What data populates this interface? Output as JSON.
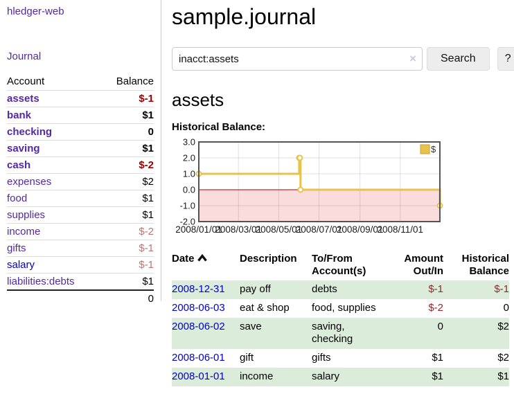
{
  "sidebar": {
    "brand": "hledger-web",
    "journal_link": "Journal",
    "accounts_table": {
      "account_header": "Account",
      "balance_header": "Balance",
      "rows": [
        {
          "name": "assets",
          "indent": 1,
          "bold": true,
          "link_color": "purple",
          "balance": "$-1",
          "balance_style": "neg-bold"
        },
        {
          "name": "bank",
          "indent": 2,
          "bold": true,
          "link_color": "purple",
          "balance": "$1",
          "balance_style": "pos-bold"
        },
        {
          "name": "checking",
          "indent": 3,
          "bold": true,
          "link_color": "purple",
          "balance": "0",
          "balance_style": "pos-bold"
        },
        {
          "name": "saving",
          "indent": 3,
          "bold": true,
          "link_color": "purple",
          "balance": "$1",
          "balance_style": "pos-bold"
        },
        {
          "name": "cash",
          "indent": 2,
          "bold": true,
          "link_color": "purple",
          "balance": "$-2",
          "balance_style": "neg-bold"
        },
        {
          "name": "expenses",
          "indent": 1,
          "bold": false,
          "link_color": "purple",
          "balance": "$2",
          "balance_style": "pos"
        },
        {
          "name": "food",
          "indent": 2,
          "bold": false,
          "link_color": "purple",
          "balance": "$1",
          "balance_style": "pos"
        },
        {
          "name": "supplies",
          "indent": 2,
          "bold": false,
          "link_color": "purple",
          "balance": "$1",
          "balance_style": "pos"
        },
        {
          "name": "income",
          "indent": 1,
          "bold": false,
          "link_color": "purple",
          "balance": "$-2",
          "balance_style": "neg-light"
        },
        {
          "name": "gifts",
          "indent": 2,
          "bold": false,
          "link_color": "purple",
          "balance": "$-1",
          "balance_style": "neg-light"
        },
        {
          "name": "salary",
          "indent": 2,
          "bold": false,
          "link_color": "blue",
          "balance": "$-1",
          "balance_style": "neg-light"
        },
        {
          "name": "liabilities:debts",
          "indent": 1,
          "bold": false,
          "link_color": "purple",
          "balance": "$1",
          "balance_style": "pos"
        }
      ],
      "total": "0"
    }
  },
  "header": {
    "title": "sample.journal"
  },
  "search": {
    "value": "inacct:assets",
    "clear_icon": "×",
    "button_label": "Search",
    "help_label": "?"
  },
  "account_page": {
    "heading": "assets",
    "chart_label": "Historical Balance:"
  },
  "chart_data": {
    "type": "line",
    "style": "step-after",
    "title": "Historical Balance",
    "x_range": [
      "2008-01-01",
      "2008-12-31"
    ],
    "ylim": [
      -2,
      3
    ],
    "y_tick_labels": [
      "3.0",
      "2.0",
      "1.0",
      "0.0",
      "-1.0",
      "-2.0"
    ],
    "x_tick_labels": [
      "2008/01/01",
      "2008/03/01",
      "2008/05/01",
      "2008/07/01",
      "2008/09/01",
      "2008/11/01"
    ],
    "grid": true,
    "negative_region_color": "#fbdcdc",
    "zero_line_color": "#a00000",
    "line_color": "#e8c24a",
    "legend": {
      "label": "$",
      "position": "top-right"
    },
    "series": [
      {
        "name": "$",
        "points": [
          {
            "date": "2008-01-01",
            "value": 1
          },
          {
            "date": "2008-06-01",
            "value": 2
          },
          {
            "date": "2008-06-02",
            "value": 2
          },
          {
            "date": "2008-06-03",
            "value": 0
          },
          {
            "date": "2008-12-31",
            "value": -1
          }
        ]
      }
    ]
  },
  "transactions": {
    "headers": {
      "date": "Date",
      "description_1": "Description",
      "accounts_1": "To/From",
      "accounts_2": "Account(s)",
      "amount_1": "Amount",
      "amount_2": "Out/In",
      "balance_1": "Historical",
      "balance_2": "Balance"
    },
    "rows": [
      {
        "date": "2008-12-31",
        "description": "pay off",
        "accounts": "debts",
        "amount": "$-1",
        "amount_neg": true,
        "balance": "$-1",
        "balance_neg": true,
        "stripe": true
      },
      {
        "date": "2008-06-03",
        "description": "eat & shop",
        "accounts": "food, supplies",
        "amount": "$-2",
        "amount_neg": true,
        "balance": "0",
        "balance_neg": false,
        "stripe": false
      },
      {
        "date": "2008-06-02",
        "description": "save",
        "accounts": "saving, checking",
        "amount": "0",
        "amount_neg": false,
        "balance": "$2",
        "balance_neg": false,
        "stripe": true
      },
      {
        "date": "2008-06-01",
        "description": "gift",
        "accounts": "gifts",
        "amount": "$1",
        "amount_neg": false,
        "balance": "$2",
        "balance_neg": false,
        "stripe": false
      },
      {
        "date": "2008-01-01",
        "description": "income",
        "accounts": "salary",
        "amount": "$1",
        "amount_neg": false,
        "balance": "$1",
        "balance_neg": false,
        "stripe": true
      }
    ]
  }
}
